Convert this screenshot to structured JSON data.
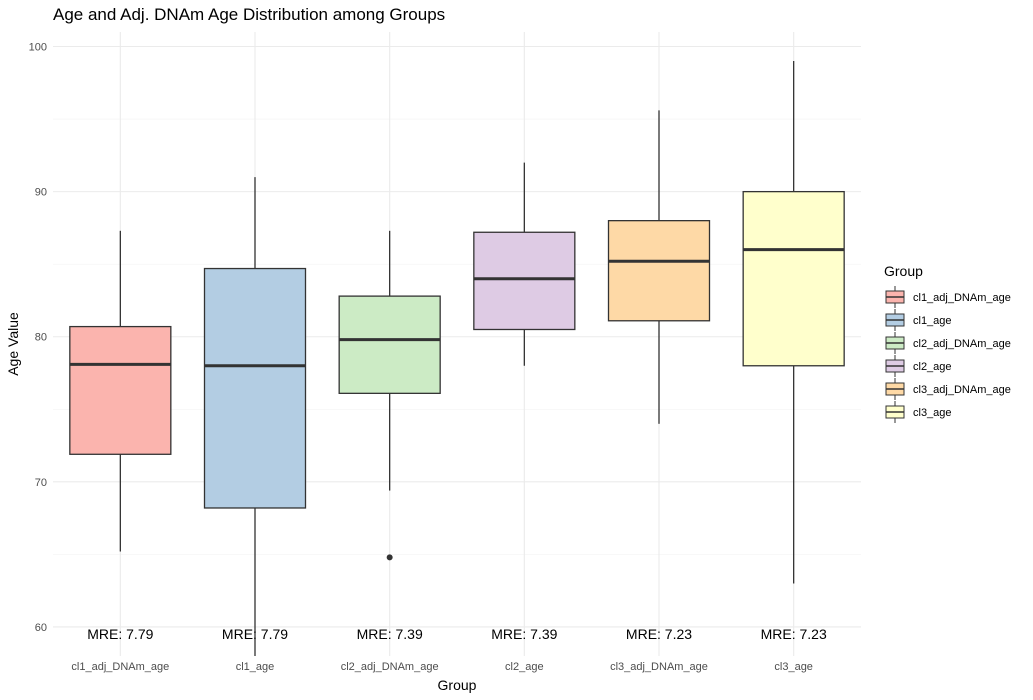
{
  "chart_data": {
    "type": "box",
    "title": "Age and Adj. DNAm Age Distribution among Groups",
    "xlabel": "Group",
    "ylabel": "Age Value",
    "ylim": [
      58,
      101
    ],
    "yticks": [
      60,
      70,
      80,
      90,
      100
    ],
    "grid": true,
    "legend": {
      "title": "Group",
      "position": "right"
    },
    "series": [
      {
        "name": "cl1_adj_DNAm_age",
        "color": "#FBB4AE",
        "whisker_low": 65.2,
        "q1": 71.9,
        "median": 78.1,
        "q3": 80.7,
        "whisker_high": 87.3,
        "outliers": [],
        "annotation": "MRE: 7.79"
      },
      {
        "name": "cl1_age",
        "color": "#B3CDE3",
        "whisker_low": 58.0,
        "q1": 68.2,
        "median": 78.0,
        "q3": 84.7,
        "whisker_high": 91.0,
        "outliers": [],
        "annotation": "MRE: 7.79"
      },
      {
        "name": "cl2_adj_DNAm_age",
        "color": "#CCEBC5",
        "whisker_low": 69.4,
        "q1": 76.1,
        "median": 79.8,
        "q3": 82.8,
        "whisker_high": 87.3,
        "outliers": [
          64.8
        ],
        "annotation": "MRE: 7.39"
      },
      {
        "name": "cl2_age",
        "color": "#DECBE4",
        "whisker_low": 78.0,
        "q1": 80.5,
        "median": 84.0,
        "q3": 87.2,
        "whisker_high": 92.0,
        "outliers": [],
        "annotation": "MRE: 7.39"
      },
      {
        "name": "cl3_adj_DNAm_age",
        "color": "#FED9A6",
        "whisker_low": 74.0,
        "q1": 81.1,
        "median": 85.2,
        "q3": 88.0,
        "whisker_high": 95.6,
        "outliers": [],
        "annotation": "MRE: 7.23"
      },
      {
        "name": "cl3_age",
        "color": "#FFFFCC",
        "whisker_low": 63.0,
        "q1": 78.0,
        "median": 86.0,
        "q3": 90.0,
        "whisker_high": 99.0,
        "outliers": [],
        "annotation": "MRE: 7.23"
      }
    ]
  }
}
